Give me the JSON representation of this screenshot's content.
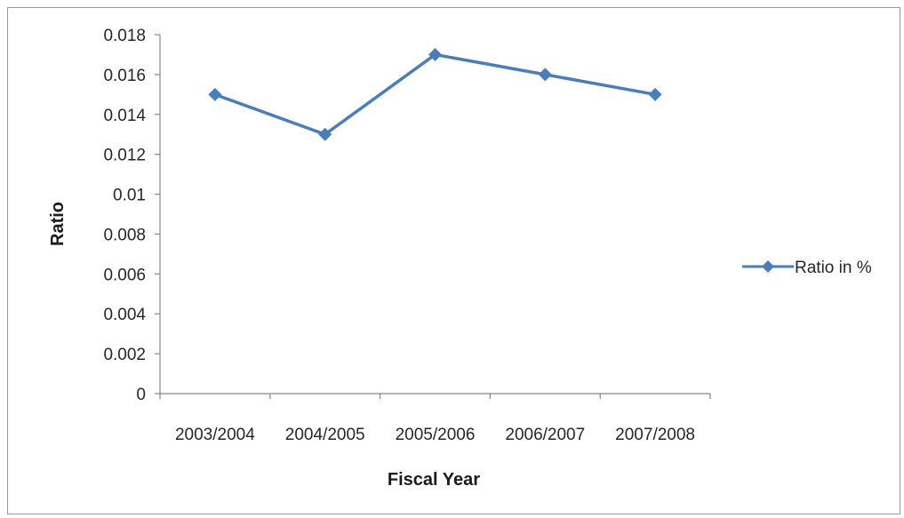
{
  "chart_data": {
    "type": "line",
    "categories": [
      "2003/2004",
      "2004/2005",
      "2005/2006",
      "2006/2007",
      "2007/2008"
    ],
    "series": [
      {
        "name": "Ratio in %",
        "values": [
          0.015,
          0.013,
          0.017,
          0.016,
          0.015
        ],
        "color": "#4a7ebb",
        "marker": "diamond"
      }
    ],
    "xlabel": "Fiscal Year",
    "ylabel": "Ratio",
    "ylim": [
      0,
      0.018
    ],
    "yticks": [
      "0",
      "0.002",
      "0.004",
      "0.006",
      "0.008",
      "0.01",
      "0.012",
      "0.014",
      "0.016",
      "0.018"
    ],
    "grid": false,
    "legend_position": "right"
  }
}
